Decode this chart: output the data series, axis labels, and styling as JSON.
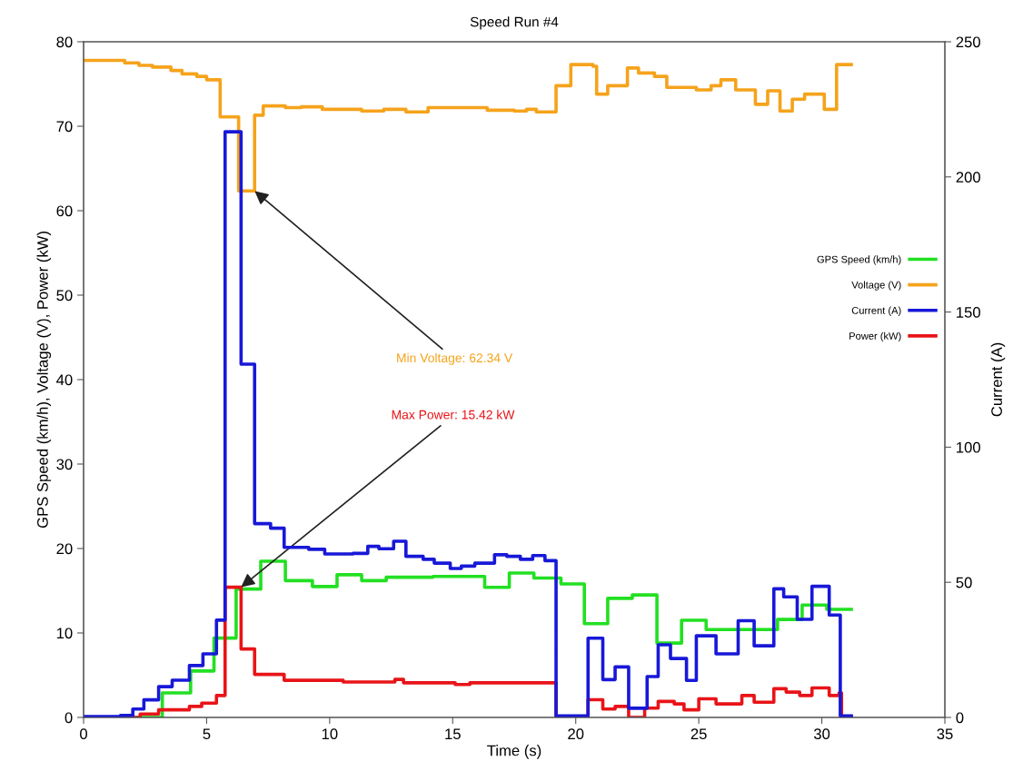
{
  "chart_data": {
    "type": "step",
    "title": "Speed Run #4",
    "xlabel": "Time (s)",
    "ylabel": "GPS Speed (km/h), Voltage (V), Power (kW)",
    "y2label": "Current (A)",
    "xlim": [
      0,
      35
    ],
    "xticks": [
      0,
      5,
      10,
      15,
      20,
      25,
      30,
      35
    ],
    "ylim": [
      0,
      80
    ],
    "yticks": [
      0,
      10,
      20,
      30,
      40,
      50,
      60,
      70,
      80
    ],
    "y2lim": [
      0,
      250
    ],
    "y2ticks": [
      0,
      50,
      100,
      150,
      200,
      250
    ],
    "grid": false,
    "legend": "right",
    "marker": "none",
    "line_style": "solid",
    "series": [
      {
        "name": "GPS Speed (km/h)",
        "color": "#22e022",
        "x": [
          0,
          3.2,
          4.35,
          5.3,
          6.2,
          7.2,
          8.2,
          9.3,
          10.3,
          11.3,
          12.3,
          14.2,
          16.3,
          17.3,
          18.3,
          19.4,
          20.35,
          21.3,
          22.3,
          23.3,
          24.3,
          25.3,
          28.2,
          29.2,
          30.2,
          31.2
        ],
        "values": [
          0,
          2.9,
          5.5,
          9.4,
          15.2,
          18.5,
          16.2,
          15.5,
          16.9,
          16.2,
          16.6,
          16.7,
          15.4,
          17.1,
          16.5,
          15.8,
          11.1,
          14.1,
          14.5,
          8.8,
          11.5,
          10.4,
          11.6,
          13.3,
          12.8,
          12.8
        ]
      },
      {
        "name": "Voltage (V)",
        "color": "#f5a31c",
        "x": [
          0,
          1.67,
          2.25,
          2.8,
          3.55,
          4.0,
          4.6,
          5.0,
          5.55,
          6.3,
          6.95,
          7.3,
          8.2,
          8.85,
          9.7,
          11.3,
          12.2,
          13.1,
          14.0,
          16.4,
          17.5,
          18.0,
          18.4,
          19.2,
          19.8,
          20.7,
          20.85,
          21.3,
          22.1,
          22.55,
          23.2,
          23.7,
          24.9,
          25.5,
          25.9,
          26.5,
          27.3,
          27.8,
          28.3,
          28.8,
          29.3,
          30.1,
          30.6,
          31.2
        ],
        "values": [
          77.8,
          77.5,
          77.2,
          77.0,
          76.6,
          76.2,
          75.9,
          75.5,
          71.1,
          62.34,
          71.3,
          72.4,
          72.2,
          72.3,
          72.0,
          71.8,
          72.0,
          71.7,
          72.2,
          71.9,
          71.8,
          72.0,
          71.7,
          74.8,
          77.3,
          77.1,
          73.8,
          74.8,
          76.9,
          76.3,
          75.9,
          74.6,
          74.3,
          74.8,
          75.5,
          74.3,
          72.6,
          74.2,
          71.8,
          73.2,
          73.8,
          72.0,
          77.3,
          77.3
        ]
      },
      {
        "name": "Current (A)",
        "color": "#1818d8",
        "axis": "y2",
        "x": [
          0,
          1.5,
          2.0,
          2.45,
          3.05,
          3.6,
          4.3,
          4.85,
          5.4,
          5.75,
          6.4,
          6.95,
          7.6,
          8.15,
          9.15,
          9.8,
          10.95,
          11.55,
          12.0,
          12.6,
          13.1,
          13.8,
          14.25,
          14.9,
          15.35,
          15.9,
          16.7,
          17.2,
          17.75,
          18.25,
          18.75,
          19.2,
          20.5,
          21.1,
          21.6,
          22.15,
          22.9,
          23.35,
          23.85,
          24.5,
          24.9,
          25.7,
          26.6,
          27.25,
          28.05,
          28.45,
          29.0,
          29.6,
          30.3,
          30.75,
          31.2
        ],
        "values": [
          0.3,
          0.7,
          3.1,
          6.5,
          11.4,
          13.8,
          19.2,
          23.5,
          36.0,
          216.7,
          130.7,
          71.7,
          70.0,
          62.9,
          62.2,
          60.5,
          60.7,
          63.3,
          62.4,
          65.2,
          59.6,
          58.5,
          57.1,
          55.1,
          56.0,
          57.1,
          60.2,
          59.6,
          58.5,
          59.9,
          58.0,
          0.6,
          29.3,
          14.0,
          18.7,
          3.4,
          15.1,
          26.9,
          21.8,
          13.7,
          30.2,
          23.5,
          35.8,
          26.5,
          47.6,
          44.6,
          36.3,
          48.5,
          37.9,
          0.6,
          0.6
        ]
      },
      {
        "name": "Power (kW)",
        "color": "#e81418",
        "x": [
          0,
          2.3,
          3.05,
          4.3,
          4.8,
          5.4,
          5.75,
          6.4,
          6.95,
          8.15,
          10.55,
          12.65,
          13.0,
          15.1,
          15.7,
          19.2,
          20.5,
          21.1,
          21.6,
          22.15,
          22.8,
          23.35,
          24.0,
          24.4,
          25.0,
          25.7,
          26.75,
          27.25,
          28.05,
          28.55,
          29.1,
          29.6,
          30.3,
          30.7,
          30.8,
          31.2
        ],
        "values": [
          0,
          0.4,
          0.9,
          1.3,
          1.7,
          2.6,
          15.42,
          8.1,
          5.1,
          4.4,
          4.2,
          4.5,
          4.1,
          3.9,
          4.1,
          0.1,
          2.1,
          1.0,
          1.3,
          0,
          1.1,
          1.9,
          1.6,
          0.9,
          2.2,
          1.6,
          2.6,
          1.8,
          3.4,
          3.0,
          2.6,
          3.5,
          2.6,
          2.9,
          0.1,
          0.1
        ]
      }
    ],
    "annotations": [
      {
        "text": "Min Voltage: 62.34 V",
        "x": 6.95,
        "y": 62.34
      },
      {
        "text": "Max Power: 15.42 kW",
        "x": 6.4,
        "y": 15.42
      }
    ]
  }
}
